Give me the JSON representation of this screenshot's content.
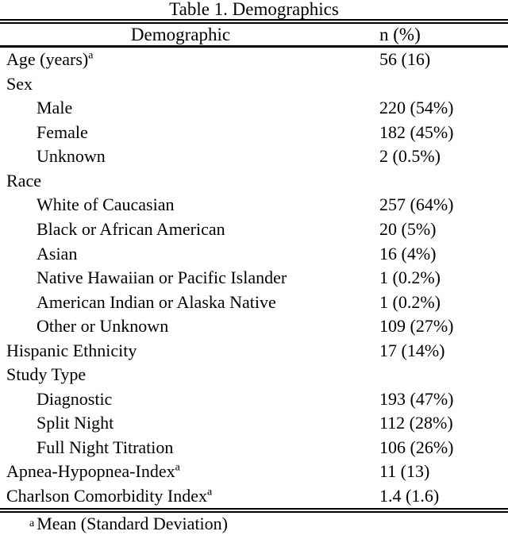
{
  "table": {
    "title": "Table 1. Demographics",
    "columns": {
      "demographic": "Demographic",
      "value": "n (%)"
    },
    "rows": [
      {
        "label": "Age (years)",
        "sup": "a",
        "value": "56 (16)",
        "indent": false
      },
      {
        "label": "Sex",
        "sup": "",
        "value": "",
        "indent": false
      },
      {
        "label": "Male",
        "sup": "",
        "value": "220 (54%)",
        "indent": true
      },
      {
        "label": "Female",
        "sup": "",
        "value": "182 (45%)",
        "indent": true
      },
      {
        "label": "Unknown",
        "sup": "",
        "value": "2 (0.5%)",
        "indent": true
      },
      {
        "label": "Race",
        "sup": "",
        "value": "",
        "indent": false
      },
      {
        "label": "White of Caucasian",
        "sup": "",
        "value": "257 (64%)",
        "indent": true
      },
      {
        "label": "Black or African American",
        "sup": "",
        "value": "20 (5%)",
        "indent": true
      },
      {
        "label": "Asian",
        "sup": "",
        "value": "16 (4%)",
        "indent": true
      },
      {
        "label": "Native Hawaiian or Pacific Islander",
        "sup": "",
        "value": "1 (0.2%)",
        "indent": true
      },
      {
        "label": "American Indian or Alaska Native",
        "sup": "",
        "value": "1 (0.2%)",
        "indent": true
      },
      {
        "label": "Other or Unknown",
        "sup": "",
        "value": "109 (27%)",
        "indent": true
      },
      {
        "label": "Hispanic Ethnicity",
        "sup": "",
        "value": "17 (14%)",
        "indent": false
      },
      {
        "label": "Study Type",
        "sup": "",
        "value": "",
        "indent": false
      },
      {
        "label": "Diagnostic",
        "sup": "",
        "value": "193 (47%)",
        "indent": true
      },
      {
        "label": "Split Night",
        "sup": "",
        "value": "112 (28%)",
        "indent": true
      },
      {
        "label": "Full Night Titration",
        "sup": "",
        "value": "106 (26%)",
        "indent": true
      },
      {
        "label": "Apnea-Hypopnea-Index",
        "sup": "a",
        "value": "11 (13)",
        "indent": false
      },
      {
        "label": "Charlson Comorbidity Index",
        "sup": "a",
        "value": "1.4 (1.6)",
        "indent": false
      }
    ],
    "footnote": {
      "marker": "a",
      "text": "Mean (Standard Deviation)"
    }
  }
}
